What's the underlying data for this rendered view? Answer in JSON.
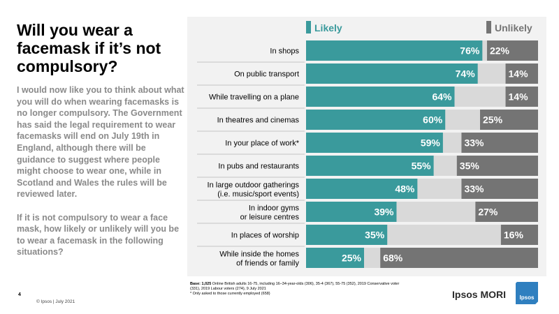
{
  "title": "Will you wear a facemask if it’s not compulsory?",
  "body": {
    "paragraph1": "I would now like you to think about what you will do when wearing facemasks is no longer compulsory. The Government has said the legal requirement to wear facemasks will end on July 19th in England, although there will be guidance to suggest where people might choose to wear one, while in Scotland and Wales the rules will be reviewed later.",
    "paragraph2": "If it is not compulsory to wear a face mask, how likely or unlikely will you be to wear a facemask in the following situations?"
  },
  "chart_data": {
    "type": "bar",
    "orientation": "horizontal",
    "stacked": true,
    "categories": [
      [
        "In shops"
      ],
      [
        "On public transport"
      ],
      [
        "While travelling on a plane"
      ],
      [
        "In theatres and cinemas"
      ],
      [
        "In your place of work*"
      ],
      [
        "In pubs and restaurants"
      ],
      [
        "In large outdoor gatherings",
        "(i.e. music/sport events)"
      ],
      [
        "In indoor gyms",
        "or leisure centres"
      ],
      [
        "In places of worship"
      ],
      [
        "While inside the homes",
        "of friends or family"
      ]
    ],
    "series": [
      {
        "name": "Likely",
        "values": [
          76,
          74,
          64,
          60,
          59,
          55,
          48,
          39,
          35,
          25
        ],
        "color": "#3a9a9c",
        "anchor": "left"
      },
      {
        "name": "Unlikely",
        "values": [
          22,
          14,
          14,
          25,
          33,
          35,
          33,
          27,
          16,
          68
        ],
        "color": "#747474",
        "anchor": "right"
      }
    ],
    "remainder_color": "#d9d9d9",
    "value_suffix": "%",
    "xlim": [
      0,
      100
    ],
    "legend": {
      "likely_label": "Likely",
      "unlikely_label": "Unlikely"
    }
  },
  "footer": {
    "base_label": "Base:",
    "base_count": "1,025",
    "base_text": " Online British adults 16-75, including 16–34-year-olds  (306), 35-4 (367), 55-75 (352), 2019 Conservative  voter  (331), 2019 Labour voters (274), 9 July 2021",
    "base_footnote": "* Only asked to those currently employed (658)",
    "page_number": "4",
    "copyright": "© Ipsos | July 2021",
    "brand": "Ipsos MORI",
    "logo_text": "Ipsos"
  }
}
